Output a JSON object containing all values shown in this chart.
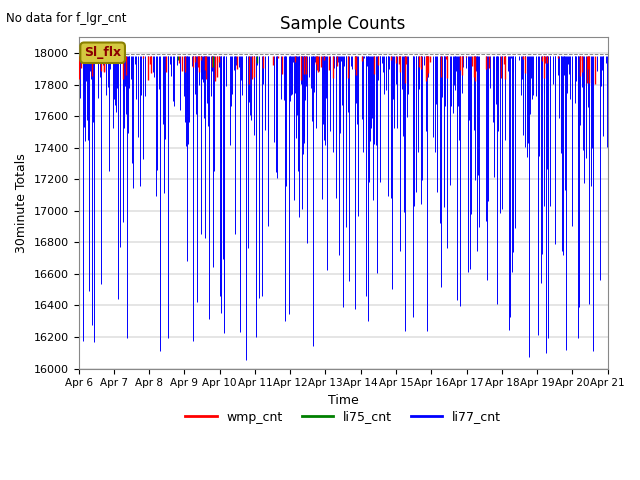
{
  "title": "Sample Counts",
  "subtitle": "No data for f_lgr_cnt",
  "annotation_label": "Sl_flx",
  "ylabel": "30minute Totals",
  "xlabel": "Time",
  "ylim": [
    16000,
    18100
  ],
  "yticks": [
    16000,
    16200,
    16400,
    16600,
    16800,
    17000,
    17200,
    17400,
    17600,
    17800,
    18000
  ],
  "xtick_labels": [
    "Apr 6",
    "Apr 7",
    "Apr 8",
    "Apr 9",
    "Apr 10",
    "Apr 11",
    "Apr 12",
    "Apr 13",
    "Apr 14",
    "Apr 15",
    "Apr 16",
    "Apr 17",
    "Apr 18",
    "Apr 19",
    "Apr 20",
    "Apr 21"
  ],
  "n_days": 15,
  "n_per_day": 48,
  "baseline": 17980,
  "dashed_line_y": 17993,
  "bg_color": "#ffffff",
  "grid_color": "#e0e0e0",
  "legend_entries": [
    "wmp_cnt",
    "li75_cnt",
    "li77_cnt"
  ],
  "legend_colors": [
    "red",
    "green",
    "blue"
  ],
  "seed": 42
}
